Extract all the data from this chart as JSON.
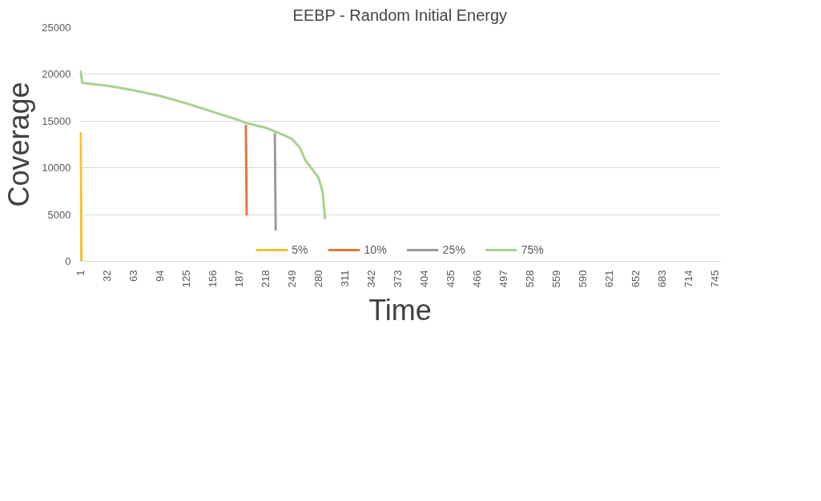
{
  "chart_data": {
    "type": "line",
    "title": "EEBP - Random Initial Energy",
    "xlabel": "Time",
    "ylabel": "Coverage",
    "xlim": [
      0,
      752
    ],
    "xticks": [
      1,
      32,
      63,
      94,
      125,
      156,
      187,
      218,
      249,
      280,
      311,
      342,
      373,
      404,
      435,
      466,
      497,
      528,
      559,
      590,
      621,
      652,
      683,
      714,
      745
    ],
    "ylim": [
      0,
      25000
    ],
    "yticks": [
      0,
      5000,
      10000,
      15000,
      20000,
      25000
    ],
    "grid": "y",
    "legend": "bottom",
    "marker": "none",
    "line_style": "solid",
    "series": [
      {
        "name": "5%",
        "color": "#f5c02a",
        "x": [
          1,
          2
        ],
        "values": [
          13800,
          0
        ]
      },
      {
        "name": "10%",
        "color": "#e07a3c",
        "x": [
          195,
          196
        ],
        "values": [
          14600,
          4900
        ]
      },
      {
        "name": "25%",
        "color": "#9a9a9a",
        "x": [
          229,
          230
        ],
        "values": [
          13700,
          3300
        ]
      },
      {
        "name": "75%",
        "color": "#a9d18e",
        "x": [
          1,
          3,
          10,
          32,
          63,
          94,
          125,
          156,
          187,
          195,
          218,
          229,
          249,
          258,
          265,
          275,
          280,
          285,
          288
        ],
        "values": [
          20400,
          19100,
          19000,
          18800,
          18300,
          17700,
          16900,
          16000,
          15100,
          14800,
          14300,
          13900,
          13100,
          12200,
          10800,
          9600,
          9000,
          7500,
          4500
        ]
      }
    ]
  }
}
